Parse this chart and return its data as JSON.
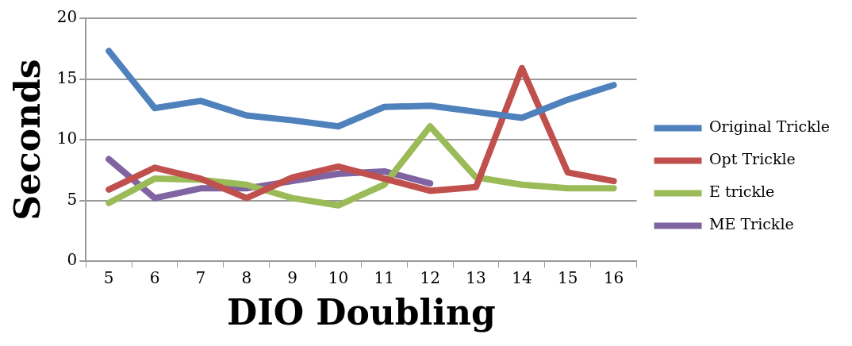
{
  "chart_data": {
    "type": "line",
    "xlabel": "DIO Doubling",
    "ylabel": "Seconds",
    "categories": [
      "5",
      "6",
      "7",
      "8",
      "9",
      "10",
      "11",
      "12",
      "13",
      "14",
      "15",
      "16"
    ],
    "series": [
      {
        "name": "Original Trickle",
        "color": "#4f81bd",
        "values": [
          17.3,
          12.6,
          13.2,
          12.0,
          11.6,
          11.1,
          12.7,
          12.8,
          12.3,
          11.8,
          13.3,
          14.5
        ]
      },
      {
        "name": "Opt Trickle",
        "color": "#c0504d",
        "values": [
          5.9,
          7.7,
          6.8,
          5.2,
          6.9,
          7.8,
          6.8,
          5.8,
          6.1,
          15.9,
          7.3,
          6.6
        ]
      },
      {
        "name": "E trickle",
        "color": "#9bbb59",
        "values": [
          4.8,
          6.8,
          6.7,
          6.3,
          5.2,
          4.6,
          6.3,
          11.1,
          6.9,
          6.3,
          6.0,
          6.0
        ]
      },
      {
        "name": "ME Trickle",
        "color": "#8064a2",
        "values": [
          8.4,
          5.2,
          6.0,
          6.0,
          6.6,
          7.2,
          7.4,
          6.4,
          null,
          null,
          null,
          null
        ]
      }
    ],
    "ylim": [
      0,
      20
    ],
    "yticks": [
      0,
      5,
      10,
      15,
      20
    ],
    "grid": "y",
    "legend": "right",
    "marker": "none",
    "line_style": "solid"
  }
}
